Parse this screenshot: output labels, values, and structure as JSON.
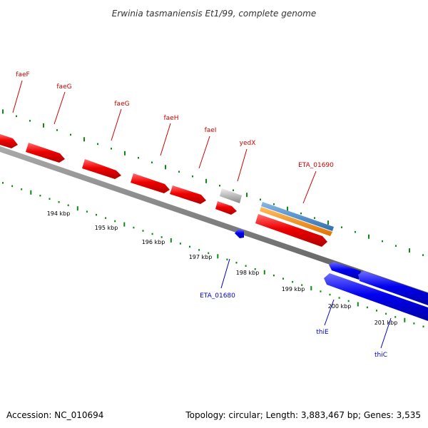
{
  "title": "Erwinia tasmaniensis Et1/99, complete genome",
  "footer": {
    "accession": "Accession: NC_010694",
    "topology": "Topology: circular; Length: 3,883,467 bp; Genes: 3,535"
  },
  "colors": {
    "forward_gene": "#ee0000",
    "reverse_gene": "#0000ee",
    "forward_label": "#cc0000",
    "reverse_label": "#0000cc",
    "pseudo_gene": "#bbbbbb",
    "blue_feature": "#3f7fbf",
    "orange_feature": "#ff8c00",
    "backbone": "#777777",
    "tick": "#118811"
  },
  "scale": {
    "labels": [
      "194 kbp",
      "195 kbp",
      "196 kbp",
      "197 kbp",
      "198 kbp",
      "199 kbp",
      "200 kbp",
      "201 kbp"
    ]
  },
  "genes": {
    "forward": [
      "faeF",
      "faeG",
      "faeG",
      "faeH",
      "faeI",
      "yedX",
      "ETA_01690"
    ],
    "reverse": [
      "ETA_01680",
      "thiE",
      "thiC"
    ]
  }
}
